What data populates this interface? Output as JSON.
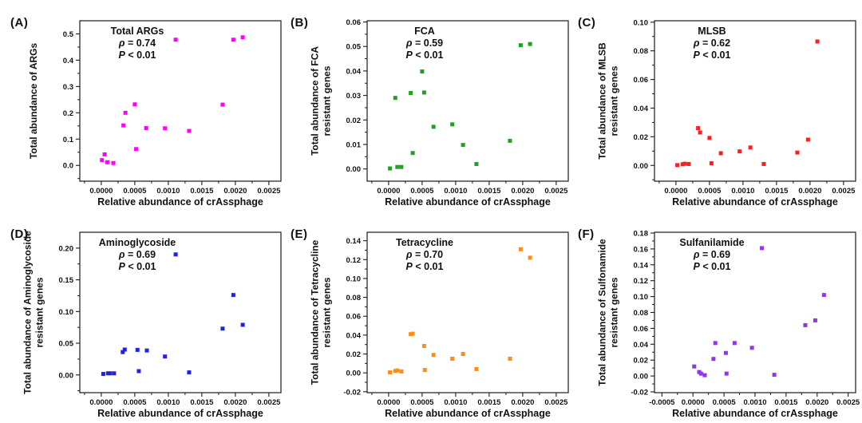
{
  "figure": {
    "background": "#ffffff",
    "frame_color": "#1a1a1a",
    "text_color": "#111111"
  },
  "chart_data": [
    {
      "type": "scatter",
      "panel_label": "(A)",
      "annotation": {
        "title": "Total ARGs",
        "rho_symbol": "ρ",
        "rho_text": " = 0.74",
        "p_symbol": "P",
        "p_text": " < 0.01"
      },
      "color": "#FF00FF",
      "marker": "square",
      "xlabel": "Relative abundance of crAssphage",
      "ylabel_lines": [
        "Total abundance of ARGs"
      ],
      "xlim": [
        -0.00032,
        0.00268
      ],
      "ylim": [
        -0.06,
        0.55
      ],
      "xticks": [
        0.0,
        0.0005,
        0.001,
        0.0015,
        0.002,
        0.0025
      ],
      "yticks": [
        0.0,
        0.1,
        0.2,
        0.3,
        0.4,
        0.5
      ],
      "xtick_decimals": 4,
      "ytick_decimals": 1,
      "points": [
        [
          1e-05,
          0.02
        ],
        [
          5e-05,
          0.042
        ],
        [
          9e-05,
          0.012
        ],
        [
          0.00018,
          0.009
        ],
        [
          0.00033,
          0.152
        ],
        [
          0.00036,
          0.2
        ],
        [
          0.0005,
          0.232
        ],
        [
          0.00052,
          0.062
        ],
        [
          0.00067,
          0.142
        ],
        [
          0.00095,
          0.141
        ],
        [
          0.00111,
          0.478
        ],
        [
          0.00131,
          0.131
        ],
        [
          0.00181,
          0.231
        ],
        [
          0.00197,
          0.478
        ],
        [
          0.00211,
          0.487
        ]
      ]
    },
    {
      "type": "scatter",
      "panel_label": "(B)",
      "annotation": {
        "title": "FCA",
        "rho_symbol": "ρ",
        "rho_text": " = 0.59",
        "p_symbol": "P",
        "p_text": " < 0.01"
      },
      "color": "#21A121",
      "marker": "square",
      "xlabel": "Relative abundance of crAssphage",
      "ylabel_lines": [
        "Total abundance of FCA",
        "resistant genes"
      ],
      "xlim": [
        -0.00032,
        0.00268
      ],
      "ylim": [
        -0.005,
        0.0605
      ],
      "xticks": [
        0.0,
        0.0005,
        0.001,
        0.0015,
        0.002,
        0.0025
      ],
      "yticks": [
        0.0,
        0.01,
        0.02,
        0.03,
        0.04,
        0.05,
        0.06
      ],
      "xtick_decimals": 4,
      "ytick_decimals": 2,
      "points": [
        [
          2e-05,
          0.0002
        ],
        [
          0.0001,
          0.029
        ],
        [
          0.00013,
          0.0008
        ],
        [
          0.00019,
          0.0008
        ],
        [
          0.00033,
          0.031
        ],
        [
          0.00036,
          0.0065
        ],
        [
          0.0005,
          0.0398
        ],
        [
          0.00053,
          0.0312
        ],
        [
          0.00067,
          0.0172
        ],
        [
          0.00095,
          0.0182
        ],
        [
          0.00111,
          0.0098
        ],
        [
          0.00131,
          0.002
        ],
        [
          0.00181,
          0.0115
        ],
        [
          0.00197,
          0.0505
        ],
        [
          0.00211,
          0.051
        ]
      ]
    },
    {
      "type": "scatter",
      "panel_label": "(C)",
      "annotation": {
        "title": "MLSB",
        "rho_symbol": "ρ",
        "rho_text": " = 0.62",
        "p_symbol": "P",
        "p_text": " < 0.01"
      },
      "color": "#FB2020",
      "marker": "square",
      "xlabel": "Relative abundance of crAssphage",
      "ylabel_lines": [
        "Total abundance of MLSB",
        "resistant genes"
      ],
      "xlim": [
        -0.00032,
        0.00268
      ],
      "ylim": [
        -0.011,
        0.101
      ],
      "xticks": [
        0.0,
        0.0005,
        0.001,
        0.0015,
        0.002,
        0.0025
      ],
      "yticks": [
        0.0,
        0.02,
        0.04,
        0.06,
        0.08,
        0.1
      ],
      "xtick_decimals": 4,
      "ytick_decimals": 2,
      "points": [
        [
          2e-05,
          0.0002
        ],
        [
          0.0001,
          0.0008
        ],
        [
          0.00013,
          0.0012
        ],
        [
          0.00019,
          0.001
        ],
        [
          0.00033,
          0.026
        ],
        [
          0.00036,
          0.023
        ],
        [
          0.0005,
          0.0192
        ],
        [
          0.00053,
          0.0015
        ],
        [
          0.00067,
          0.0085
        ],
        [
          0.00095,
          0.0098
        ],
        [
          0.00111,
          0.0125
        ],
        [
          0.00131,
          0.001
        ],
        [
          0.00181,
          0.009
        ],
        [
          0.00197,
          0.018
        ],
        [
          0.00211,
          0.0865
        ]
      ]
    },
    {
      "type": "scatter",
      "panel_label": "(D)",
      "annotation": {
        "title": "Aminoglycoside",
        "rho_symbol": "ρ",
        "rho_text": " = 0.69",
        "p_symbol": "P",
        "p_text": " < 0.01"
      },
      "color": "#2323DC",
      "marker": "square",
      "xlabel": "Relative abundance of crAssphage",
      "ylabel_lines": [
        "Total abundance of Aminoglycoside",
        "resistant genes"
      ],
      "xlim": [
        -0.00032,
        0.00268
      ],
      "ylim": [
        -0.028,
        0.225
      ],
      "xticks": [
        0.0,
        0.0005,
        0.001,
        0.0015,
        0.002,
        0.0025
      ],
      "yticks": [
        0.0,
        0.05,
        0.1,
        0.15,
        0.2
      ],
      "xtick_decimals": 4,
      "ytick_decimals": 2,
      "points": [
        [
          3e-05,
          0.0015
        ],
        [
          0.0001,
          0.0025
        ],
        [
          0.00013,
          0.0025
        ],
        [
          0.00019,
          0.0025
        ],
        [
          0.00032,
          0.036
        ],
        [
          0.00035,
          0.04
        ],
        [
          0.00054,
          0.0395
        ],
        [
          0.00056,
          0.006
        ],
        [
          0.00068,
          0.0385
        ],
        [
          0.00095,
          0.029
        ],
        [
          0.00111,
          0.19
        ],
        [
          0.00131,
          0.004
        ],
        [
          0.00181,
          0.073
        ],
        [
          0.00197,
          0.126
        ],
        [
          0.00211,
          0.079
        ]
      ]
    },
    {
      "type": "scatter",
      "panel_label": "(E)",
      "annotation": {
        "title": "Tetracycline",
        "rho_symbol": "ρ",
        "rho_text": " = 0.70",
        "p_symbol": "P",
        "p_text": " < 0.01"
      },
      "color": "#FF8C19",
      "marker": "square",
      "xlabel": "Relative abundance of crAssphage",
      "ylabel_lines": [
        "Total abundance of Tetracycline",
        "resistant genes"
      ],
      "xlim": [
        -0.00032,
        0.00268
      ],
      "ylim": [
        -0.021,
        0.149
      ],
      "xticks": [
        0.0,
        0.0005,
        0.001,
        0.0015,
        0.002,
        0.0025
      ],
      "yticks": [
        -0.02,
        0.0,
        0.02,
        0.04,
        0.06,
        0.08,
        0.1,
        0.12,
        0.14
      ],
      "xtick_decimals": 4,
      "ytick_decimals": 2,
      "points": [
        [
          2e-05,
          0.0005
        ],
        [
          0.0001,
          0.002
        ],
        [
          0.00013,
          0.0025
        ],
        [
          0.00019,
          0.0015
        ],
        [
          0.00033,
          0.041
        ],
        [
          0.00036,
          0.0415
        ],
        [
          0.00053,
          0.0285
        ],
        [
          0.00054,
          0.003
        ],
        [
          0.00067,
          0.019
        ],
        [
          0.00095,
          0.015
        ],
        [
          0.00111,
          0.02
        ],
        [
          0.00131,
          0.004
        ],
        [
          0.00181,
          0.015
        ],
        [
          0.00197,
          0.131
        ],
        [
          0.00211,
          0.122
        ]
      ]
    },
    {
      "type": "scatter",
      "panel_label": "(F)",
      "annotation": {
        "title": "Sulfanilamide",
        "rho_symbol": "ρ",
        "rho_text": " = 0.69",
        "p_symbol": "P",
        "p_text": " < 0.01"
      },
      "color": "#9333EA",
      "marker": "square",
      "xlabel": "Relative abundance of crAssphage",
      "ylabel_lines": [
        "Total abundance of Sulfonamide",
        "resistant genes"
      ],
      "xlim": [
        -0.00062,
        0.00262
      ],
      "ylim": [
        -0.021,
        0.181
      ],
      "xticks": [
        -0.0005,
        0.0,
        0.0005,
        0.001,
        0.0015,
        0.002,
        0.0025
      ],
      "yticks": [
        -0.02,
        0.0,
        0.02,
        0.04,
        0.06,
        0.08,
        0.1,
        0.12,
        0.14,
        0.16,
        0.18
      ],
      "xtick_decimals": 4,
      "ytick_decimals": 2,
      "points": [
        [
          2e-05,
          0.012
        ],
        [
          0.0001,
          0.005
        ],
        [
          0.00013,
          0.003
        ],
        [
          0.00019,
          0.001
        ],
        [
          0.00033,
          0.0215
        ],
        [
          0.00036,
          0.0415
        ],
        [
          0.00053,
          0.029
        ],
        [
          0.00054,
          0.003
        ],
        [
          0.00067,
          0.0415
        ],
        [
          0.00095,
          0.0355
        ],
        [
          0.00111,
          0.161
        ],
        [
          0.00131,
          0.0015
        ],
        [
          0.00181,
          0.064
        ],
        [
          0.00197,
          0.07
        ],
        [
          0.00211,
          0.102
        ]
      ]
    }
  ]
}
